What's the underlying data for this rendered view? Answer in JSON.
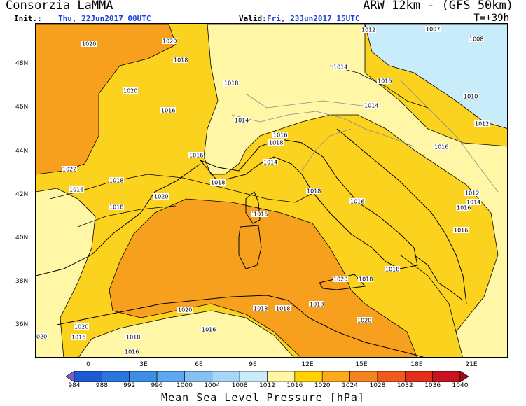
{
  "header": {
    "provider": "Consorzia LaMMA",
    "model": "ARW 12km - (GFS 50km)",
    "init_label": "Init.:",
    "init_value": "Thu, 22Jun2017 00UTC",
    "valid_label": "Valid:",
    "valid_value": "Fri, 23Jun2017 15UTC",
    "lead_time": "T=+39h"
  },
  "axes": {
    "lat_labels": [
      "48N",
      "46N",
      "44N",
      "42N",
      "40N",
      "38N",
      "36N"
    ],
    "lon_labels": [
      "0",
      "3E",
      "6E",
      "9E",
      "12E",
      "15E",
      "18E",
      "21E"
    ]
  },
  "colorbar": {
    "title": "Mean Sea Level Pressure [hPa]",
    "levels": [
      "984",
      "988",
      "992",
      "996",
      "1000",
      "1004",
      "1008",
      "1012",
      "1016",
      "1020",
      "1024",
      "1028",
      "1032",
      "1036",
      "1040"
    ],
    "colors": [
      "#7b5ccf",
      "#1f5ad6",
      "#2a76e0",
      "#3d8fe6",
      "#5ea7ee",
      "#86c0f2",
      "#a8d6f6",
      "#c8ecf9",
      "#fff7a6",
      "#ffd200",
      "#fbaa1c",
      "#f58420",
      "#ef5a1e",
      "#e22f1c",
      "#c8121e",
      "#9e0d16"
    ]
  },
  "isobar_labels": [
    "1012",
    "1007",
    "1020",
    "1020",
    "1018",
    "1014",
    "1008",
    "1020",
    "1016",
    "1016",
    "1018",
    "1016",
    "1010",
    "1014",
    "1012",
    "1018",
    "1016",
    "1014",
    "1014",
    "1022",
    "1018",
    "1016",
    "1018",
    "1018",
    "1012",
    "1016",
    "1018",
    "1020",
    "1016",
    "1016",
    "1018",
    "1016",
    "1014",
    "1016",
    "1020",
    "1018",
    "1018",
    "1018",
    "1020",
    "1018",
    "1018",
    "1020",
    "1018",
    "1016",
    "1020",
    "1016",
    "1016",
    "020"
  ]
}
